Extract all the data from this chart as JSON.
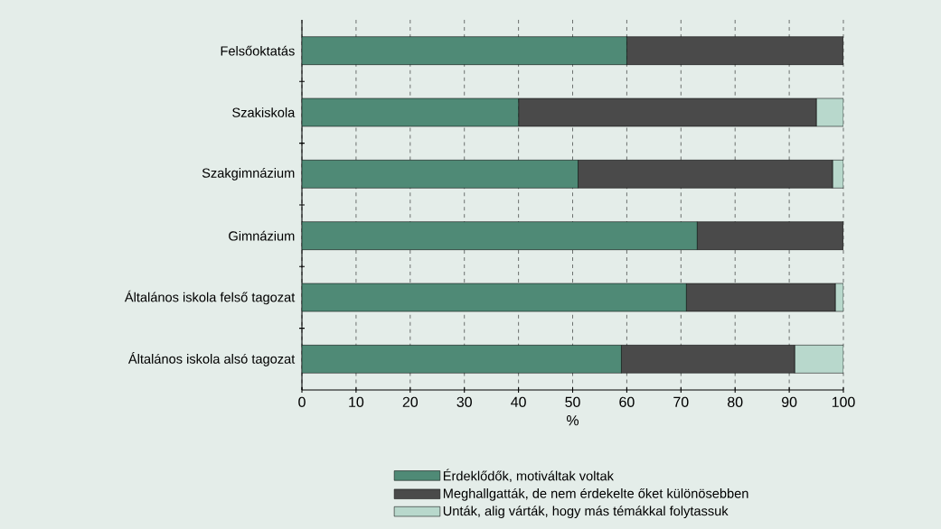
{
  "chart_data": {
    "type": "bar",
    "orientation": "horizontal",
    "stacked": true,
    "categories": [
      "Felsőoktatás",
      "Szakiskola",
      "Szakgimnázium",
      "Gimnázium",
      "Általános iskola felső tagozat",
      "Általános iskola alsó tagozat"
    ],
    "series": [
      {
        "name": "Érdeklődők, motiváltak voltak",
        "color": "#4f8a76",
        "values": [
          60,
          40,
          51,
          73,
          71,
          59
        ]
      },
      {
        "name": "Meghallgatták, de nem érdekelte őket különösebben",
        "color": "#4a4a4a",
        "values": [
          40,
          55,
          47,
          27,
          27.5,
          32
        ]
      },
      {
        "name": "Unták, alig várták, hogy más témákkal folytassuk",
        "color": "#b8d8cc",
        "values": [
          0,
          5,
          2,
          0,
          1.5,
          9
        ]
      }
    ],
    "xlabel": "%",
    "xlim": [
      0,
      100
    ],
    "xticks": [
      0,
      10,
      20,
      30,
      40,
      50,
      60,
      70,
      80,
      90,
      100
    ],
    "grid": "x",
    "legend": "bottom"
  }
}
